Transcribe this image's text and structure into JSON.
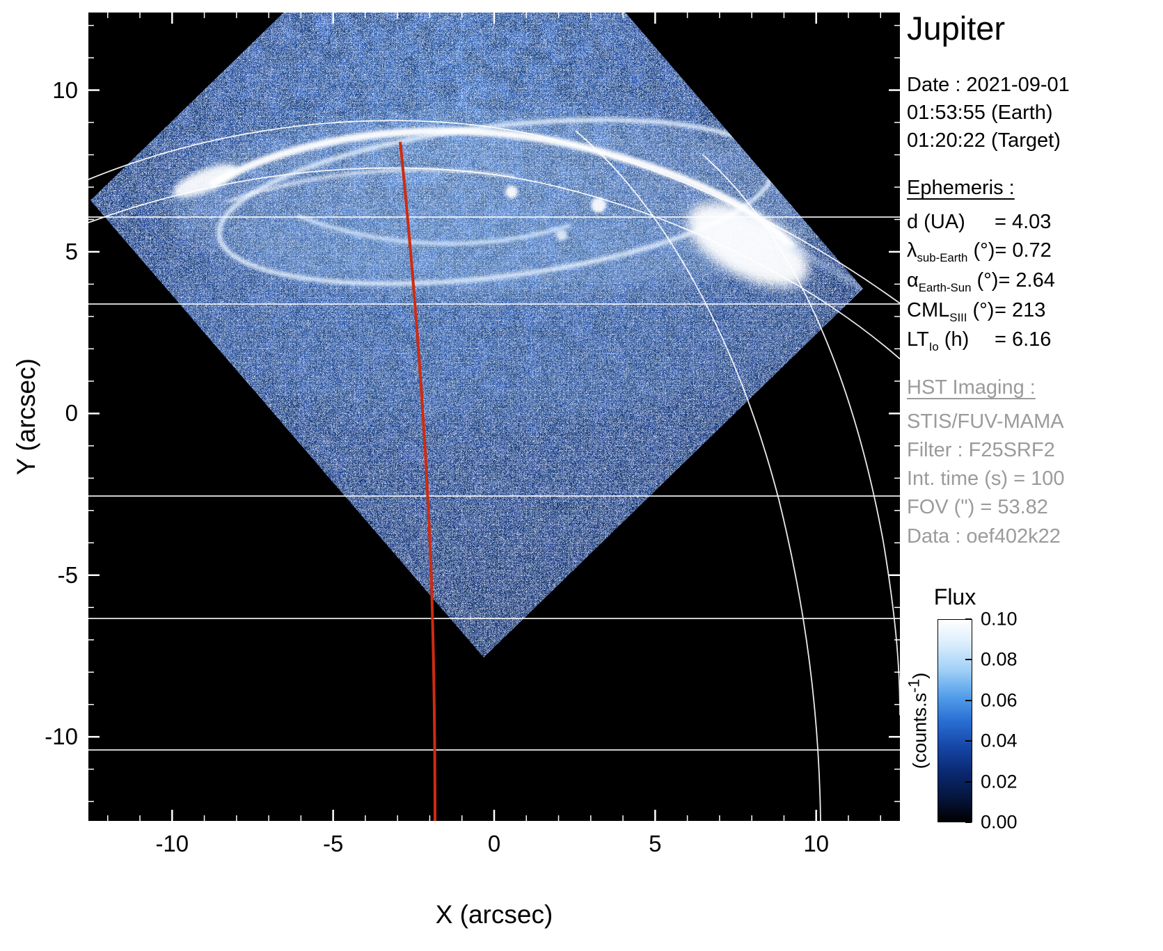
{
  "title": "Jupiter",
  "observation": {
    "date": "Date : 2021-09-01",
    "time_earth": "01:53:55 (Earth)",
    "time_target": "01:20:22 (Target)"
  },
  "ephemeris": {
    "header": "Ephemeris :",
    "lines": [
      {
        "base": "d",
        "sub": "",
        "unit": "(UA)",
        "value": "4.03"
      },
      {
        "base": "λ",
        "sub": "sub-Earth",
        "unit": "(°)",
        "value": "0.72"
      },
      {
        "base": "α",
        "sub": "Earth-Sun",
        "unit": "(°)",
        "value": "2.64"
      },
      {
        "base": "CML",
        "sub": "SIII",
        "unit": "(°)",
        "value": "213"
      },
      {
        "base": "LT",
        "sub": "Io",
        "unit": "(h)",
        "value": "6.16"
      }
    ]
  },
  "hst_imaging": {
    "header": "HST Imaging :",
    "lines": [
      "STIS/FUV-MAMA",
      "Filter : F25SRF2",
      "Int. time (s) = 100",
      "FOV (\") = 53.82",
      "Data : oef402k22"
    ]
  },
  "colorbar": {
    "title": "Flux",
    "unit_pre": "(counts.s",
    "unit_sup": "-1",
    "unit_post": ")",
    "ticks": [
      "0.10",
      "0.08",
      "0.06",
      "0.04",
      "0.02",
      "0.00"
    ],
    "gradient": [
      "#ffffff",
      "#d8ecfc",
      "#9fd0f6",
      "#55a0ea",
      "#2a6fd4",
      "#1747a8",
      "#0b2a74",
      "#051640",
      "#000000"
    ]
  },
  "chart_data": {
    "type": "heatmap",
    "title": "Jupiter",
    "xlabel": "X (arcsec)",
    "ylabel": "Y (arcsec)",
    "xlim": [
      -12.6,
      12.6
    ],
    "ylim": [
      -12.6,
      12.4
    ],
    "x_ticks": [
      -10,
      -5,
      0,
      5,
      10
    ],
    "y_ticks": [
      -10,
      -5,
      0,
      5,
      10
    ],
    "flux_label": "Flux",
    "flux_unit": "counts.s-1",
    "flux_range": [
      0.0,
      0.1
    ],
    "colorbar_ticks": [
      0.1,
      0.08,
      0.06,
      0.04,
      0.02,
      0.0
    ],
    "content": {
      "image": "HST/STIS far-UV exposure of Jupiter's northern aurora",
      "fov_shape": "rotated-square (diamond) detector field of view filled with blue photon-count noise, brightest near the pole",
      "bright_feature": "white main auroral oval arc near the top, brightest blob on the right (dusk) side",
      "overlays": [
        "white planetocentric graticule: horizontal latitude lines, curved near-pole latitude arcs and right-side meridian arcs",
        "red curved line marking the central meridian (CML 213° SIII) from the pole to the bottom of the plot"
      ]
    }
  }
}
